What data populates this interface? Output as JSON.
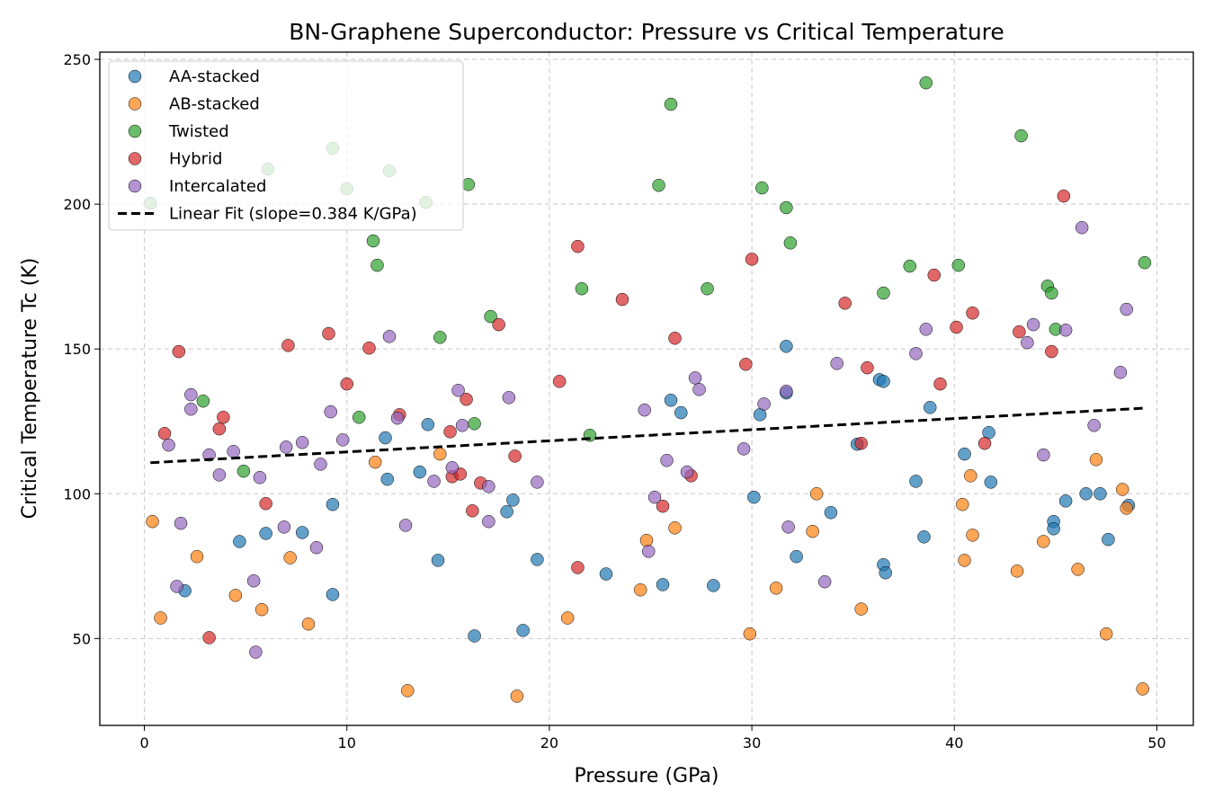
{
  "chart_data": {
    "type": "scatter",
    "title": "BN-Graphene Superconductor: Pressure vs Critical Temperature",
    "xlabel": "Pressure (GPa)",
    "ylabel": "Critical Temperature Tc (K)",
    "xlim": [
      -2.2,
      51.8
    ],
    "ylim": [
      20,
      252.5
    ],
    "xticks": [
      0,
      10,
      20,
      30,
      40,
      50
    ],
    "yticks": [
      50,
      100,
      150,
      200,
      250
    ],
    "grid": true,
    "legend_position": "top-left",
    "series": [
      {
        "name": "AA-stacked",
        "color": "#1f77b4",
        "points": [
          [
            2.0,
            66.5
          ],
          [
            4.7,
            83.5
          ],
          [
            6.0,
            86.3
          ],
          [
            7.8,
            86.6
          ],
          [
            9.3,
            96.3
          ],
          [
            9.3,
            65.2
          ],
          [
            11.9,
            119.3
          ],
          [
            12.0,
            105
          ],
          [
            13.6,
            107.5
          ],
          [
            14.0,
            123.9
          ],
          [
            14.5,
            77
          ],
          [
            16.3,
            50.9
          ],
          [
            17.9,
            93.8
          ],
          [
            18.2,
            97.8
          ],
          [
            18.7,
            52.8
          ],
          [
            19.4,
            77.3
          ],
          [
            22.8,
            72.3
          ],
          [
            25.6,
            68.6
          ],
          [
            26.0,
            132.3
          ],
          [
            26.5,
            128
          ],
          [
            28.1,
            68.3
          ],
          [
            30.1,
            98.8
          ],
          [
            30.4,
            127.3
          ],
          [
            31.7,
            134.8
          ],
          [
            31.7,
            150.9
          ],
          [
            32.2,
            78.3
          ],
          [
            33.9,
            93.5
          ],
          [
            35.2,
            117.1
          ],
          [
            36.3,
            139.4
          ],
          [
            36.5,
            138.8
          ],
          [
            36.5,
            75.5
          ],
          [
            36.6,
            72.7
          ],
          [
            38.1,
            104.3
          ],
          [
            38.5,
            85.1
          ],
          [
            38.8,
            129.8
          ],
          [
            40.5,
            113.7
          ],
          [
            41.7,
            121.1
          ],
          [
            41.8,
            104
          ],
          [
            44.9,
            90.4
          ],
          [
            44.9,
            87.9
          ],
          [
            45.5,
            97.5
          ],
          [
            46.5,
            100
          ],
          [
            47.2,
            100
          ],
          [
            47.6,
            84.2
          ],
          [
            48.6,
            96
          ]
        ]
      },
      {
        "name": "AB-stacked",
        "color": "#ff7f0e",
        "points": [
          [
            0.4,
            90.4
          ],
          [
            0.8,
            57.1
          ],
          [
            2.6,
            78.3
          ],
          [
            4.5,
            64.9
          ],
          [
            5.8,
            60
          ],
          [
            7.2,
            77.9
          ],
          [
            8.1,
            55
          ],
          [
            11.4,
            110.9
          ],
          [
            13.0,
            32
          ],
          [
            14.6,
            113.7
          ],
          [
            18.4,
            30.1
          ],
          [
            20.9,
            57.1
          ],
          [
            24.5,
            66.8
          ],
          [
            24.8,
            83.9
          ],
          [
            26.2,
            88.2
          ],
          [
            29.9,
            51.6
          ],
          [
            31.2,
            67.4
          ],
          [
            33.0,
            87
          ],
          [
            33.2,
            100
          ],
          [
            35.4,
            60.2
          ],
          [
            40.5,
            77
          ],
          [
            40.4,
            96.3
          ],
          [
            40.8,
            106.2
          ],
          [
            40.9,
            85.7
          ],
          [
            43.1,
            73.3
          ],
          [
            44.4,
            83.5
          ],
          [
            46.1,
            73.9
          ],
          [
            47.0,
            111.8
          ],
          [
            47.5,
            51.6
          ],
          [
            48.3,
            101.5
          ],
          [
            48.5,
            95
          ],
          [
            49.3,
            32.6
          ]
        ]
      },
      {
        "name": "Twisted",
        "color": "#2ca02c",
        "points": [
          [
            0.3,
            200.3
          ],
          [
            2.9,
            132
          ],
          [
            4.9,
            107.8
          ],
          [
            6.1,
            212.1
          ],
          [
            9.3,
            219.3
          ],
          [
            10.0,
            205.3
          ],
          [
            10.6,
            126.4
          ],
          [
            11.3,
            187.3
          ],
          [
            11.5,
            178.9
          ],
          [
            12.1,
            211.5
          ],
          [
            13.9,
            200.6
          ],
          [
            14.6,
            154
          ],
          [
            16.0,
            206.8
          ],
          [
            16.3,
            124.2
          ],
          [
            17.1,
            161.2
          ],
          [
            21.6,
            170.8
          ],
          [
            22.0,
            120.2
          ],
          [
            25.4,
            206.5
          ],
          [
            26.0,
            234.5
          ],
          [
            27.8,
            170.8
          ],
          [
            30.5,
            205.6
          ],
          [
            31.7,
            198.8
          ],
          [
            31.9,
            186.6
          ],
          [
            36.5,
            169.3
          ],
          [
            37.8,
            178.6
          ],
          [
            38.6,
            241.9
          ],
          [
            40.2,
            178.9
          ],
          [
            43.3,
            223.6
          ],
          [
            44.6,
            171.7
          ],
          [
            44.8,
            169.3
          ],
          [
            45.0,
            156.8
          ],
          [
            49.4,
            179.8
          ]
        ]
      },
      {
        "name": "Hybrid",
        "color": "#d62728",
        "points": [
          [
            1.0,
            120.8
          ],
          [
            1.7,
            149.1
          ],
          [
            3.2,
            50.3
          ],
          [
            3.7,
            122.4
          ],
          [
            3.9,
            126.4
          ],
          [
            6.0,
            96.6
          ],
          [
            7.1,
            151.2
          ],
          [
            9.1,
            155.3
          ],
          [
            10.0,
            137.9
          ],
          [
            11.1,
            150.3
          ],
          [
            12.6,
            127.3
          ],
          [
            15.1,
            121.4
          ],
          [
            15.2,
            105.9
          ],
          [
            15.6,
            106.8
          ],
          [
            15.9,
            132.6
          ],
          [
            16.2,
            94.1
          ],
          [
            16.6,
            103.7
          ],
          [
            17.5,
            158.4
          ],
          [
            18.3,
            113
          ],
          [
            20.5,
            138.8
          ],
          [
            21.4,
            185.4
          ],
          [
            21.4,
            74.5
          ],
          [
            23.6,
            167.1
          ],
          [
            25.6,
            95.7
          ],
          [
            26.2,
            153.7
          ],
          [
            27.0,
            106.2
          ],
          [
            29.7,
            144.7
          ],
          [
            30.0,
            181
          ],
          [
            34.6,
            165.8
          ],
          [
            35.4,
            117.4
          ],
          [
            35.7,
            143.5
          ],
          [
            39.0,
            175.5
          ],
          [
            39.3,
            137.9
          ],
          [
            40.1,
            157.5
          ],
          [
            40.9,
            162.4
          ],
          [
            41.5,
            117.4
          ],
          [
            43.2,
            155.9
          ],
          [
            44.8,
            149.1
          ],
          [
            45.4,
            202.8
          ]
        ]
      },
      {
        "name": "Intercalated",
        "color": "#9467bd",
        "points": [
          [
            1.2,
            116.8
          ],
          [
            1.6,
            68
          ],
          [
            1.8,
            89.8
          ],
          [
            2.3,
            134.2
          ],
          [
            2.3,
            129.2
          ],
          [
            3.2,
            113.4
          ],
          [
            3.7,
            106.5
          ],
          [
            4.4,
            114.6
          ],
          [
            5.4,
            69.9
          ],
          [
            5.5,
            45.3
          ],
          [
            5.7,
            105.6
          ],
          [
            6.9,
            88.5
          ],
          [
            7.0,
            116.1
          ],
          [
            7.8,
            117.7
          ],
          [
            8.5,
            81.4
          ],
          [
            8.7,
            110.2
          ],
          [
            9.2,
            128.3
          ],
          [
            9.8,
            118.6
          ],
          [
            12.1,
            154.3
          ],
          [
            12.5,
            126.1
          ],
          [
            12.9,
            89.1
          ],
          [
            14.3,
            104.3
          ],
          [
            15.2,
            109
          ],
          [
            15.5,
            135.7
          ],
          [
            15.7,
            123.6
          ],
          [
            17.0,
            90.4
          ],
          [
            17.0,
            102.5
          ],
          [
            18.0,
            133.2
          ],
          [
            19.4,
            104
          ],
          [
            24.7,
            128.9
          ],
          [
            24.9,
            80.1
          ],
          [
            25.2,
            98.8
          ],
          [
            25.8,
            111.5
          ],
          [
            26.8,
            107.5
          ],
          [
            27.2,
            140
          ],
          [
            27.4,
            136
          ],
          [
            29.6,
            115.5
          ],
          [
            30.6,
            131
          ],
          [
            31.7,
            135.4
          ],
          [
            31.8,
            88.5
          ],
          [
            33.6,
            69.6
          ],
          [
            34.2,
            145
          ],
          [
            38.1,
            148.4
          ],
          [
            38.6,
            156.8
          ],
          [
            43.6,
            152.2
          ],
          [
            43.9,
            158.4
          ],
          [
            44.4,
            113.4
          ],
          [
            45.5,
            156.5
          ],
          [
            46.3,
            191.9
          ],
          [
            46.9,
            123.6
          ],
          [
            48.2,
            141.9
          ],
          [
            48.5,
            163.7
          ]
        ]
      }
    ],
    "fit": {
      "name": "Linear Fit (slope=0.384 K/GPa)",
      "slope": 0.384,
      "intercept": 110.6,
      "x_range": [
        0.3,
        49.4
      ],
      "color": "#000000",
      "style": "dashed"
    }
  }
}
